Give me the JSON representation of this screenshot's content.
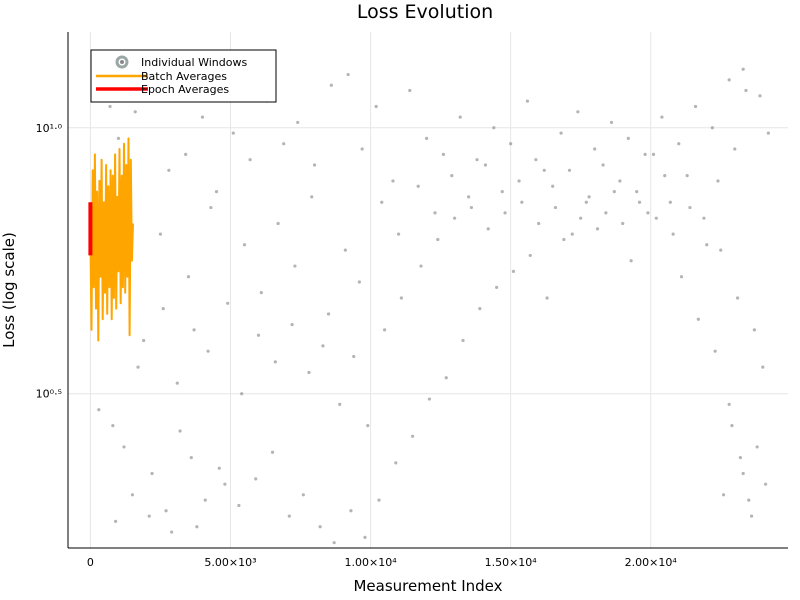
{
  "chart_data": {
    "type": "scatter",
    "title": "Loss Evolution",
    "xlabel": "Measurement Index",
    "ylabel": "Loss (log scale)",
    "xlim": [
      -800,
      24900
    ],
    "ylim": [
      0.21,
      1.18
    ],
    "y_scale": "log10 (axis shows exponent)",
    "grid": true,
    "legend_position": "top-left",
    "x_ticks": [
      {
        "value": 0,
        "label": "0"
      },
      {
        "value": 5000,
        "label": "5.00×10³"
      },
      {
        "value": 10000,
        "label": "1.00×10⁴"
      },
      {
        "value": 15000,
        "label": "1.50×10⁴"
      },
      {
        "value": 20000,
        "label": "2.00×10⁴"
      }
    ],
    "y_ticks": [
      {
        "value": 0.5,
        "label": "10⁰·⁵"
      },
      {
        "value": 1.0,
        "label": "10¹·⁰"
      }
    ],
    "series": [
      {
        "name": "Individual Windows",
        "kind": "scatter",
        "color": "#8c8c8c",
        "points": [
          [
            300,
            0.47
          ],
          [
            800,
            0.44
          ],
          [
            1200,
            0.4
          ],
          [
            1700,
            0.55
          ],
          [
            2200,
            0.35
          ],
          [
            2700,
            0.28
          ],
          [
            3200,
            0.43
          ],
          [
            3600,
            0.38
          ],
          [
            4100,
            0.3
          ],
          [
            4600,
            0.36
          ],
          [
            900,
            0.26
          ],
          [
            1500,
            0.31
          ],
          [
            2100,
            0.27
          ],
          [
            2900,
            0.24
          ],
          [
            3800,
            0.25
          ],
          [
            4800,
            0.33
          ],
          [
            5300,
            0.29
          ],
          [
            5900,
            0.34
          ],
          [
            6500,
            0.39
          ],
          [
            7100,
            0.27
          ],
          [
            7600,
            0.31
          ],
          [
            8200,
            0.25
          ],
          [
            8700,
            0.22
          ],
          [
            9300,
            0.28
          ],
          [
            9800,
            0.23
          ],
          [
            10300,
            0.3
          ],
          [
            10900,
            0.37
          ],
          [
            11500,
            0.42
          ],
          [
            12100,
            0.49
          ],
          [
            12700,
            0.53
          ],
          [
            13300,
            0.6
          ],
          [
            13900,
            0.66
          ],
          [
            14500,
            0.7
          ],
          [
            15100,
            0.73
          ],
          [
            15700,
            0.76
          ],
          [
            16300,
            0.68
          ],
          [
            16900,
            0.79
          ],
          [
            17500,
            0.83
          ],
          [
            18100,
            0.81
          ],
          [
            18700,
            0.88
          ],
          [
            19300,
            0.75
          ],
          [
            19900,
            0.84
          ],
          [
            20500,
            0.91
          ],
          [
            21100,
            0.72
          ],
          [
            21700,
            0.64
          ],
          [
            22300,
            0.58
          ],
          [
            22800,
            0.48
          ],
          [
            23300,
            0.35
          ],
          [
            23800,
            0.4
          ],
          [
            23500,
            0.3
          ],
          [
            1000,
            0.98
          ],
          [
            1600,
            1.03
          ],
          [
            2300,
            1.06
          ],
          [
            2800,
            0.92
          ],
          [
            3400,
            0.95
          ],
          [
            4000,
            1.02
          ],
          [
            4500,
            0.88
          ],
          [
            5100,
            0.99
          ],
          [
            5700,
            0.94
          ],
          [
            6300,
            1.05
          ],
          [
            6900,
            0.97
          ],
          [
            7400,
            1.01
          ],
          [
            8000,
            0.93
          ],
          [
            8600,
            1.08
          ],
          [
            9200,
            1.1
          ],
          [
            9700,
            0.96
          ],
          [
            10200,
            1.04
          ],
          [
            10800,
            0.9
          ],
          [
            11400,
            1.07
          ],
          [
            12000,
            0.98
          ],
          [
            12600,
            0.95
          ],
          [
            13200,
            1.02
          ],
          [
            13800,
            0.94
          ],
          [
            14400,
            1.0
          ],
          [
            15000,
            0.97
          ],
          [
            15600,
            1.05
          ],
          [
            16200,
            0.92
          ],
          [
            16800,
            0.99
          ],
          [
            17400,
            1.03
          ],
          [
            18000,
            0.96
          ],
          [
            18600,
            1.01
          ],
          [
            19200,
            0.98
          ],
          [
            19800,
            0.95
          ],
          [
            20400,
            1.02
          ],
          [
            21000,
            0.97
          ],
          [
            21600,
            1.04
          ],
          [
            22200,
            1.0
          ],
          [
            22800,
            1.09
          ],
          [
            23300,
            1.11
          ],
          [
            23900,
            1.06
          ],
          [
            2500,
            0.8
          ],
          [
            3500,
            0.72
          ],
          [
            4300,
            0.85
          ],
          [
            5500,
            0.78
          ],
          [
            6100,
            0.69
          ],
          [
            6700,
            0.82
          ],
          [
            7300,
            0.74
          ],
          [
            7900,
            0.87
          ],
          [
            8500,
            0.65
          ],
          [
            9100,
            0.77
          ],
          [
            9600,
            0.71
          ],
          [
            10400,
            0.86
          ],
          [
            11000,
            0.8
          ],
          [
            11700,
            0.89
          ],
          [
            12300,
            0.84
          ],
          [
            12900,
            0.91
          ],
          [
            13500,
            0.87
          ],
          [
            14100,
            0.93
          ],
          [
            14700,
            0.88
          ],
          [
            15300,
            0.9
          ],
          [
            15900,
            0.94
          ],
          [
            16500,
            0.89
          ],
          [
            17100,
            0.92
          ],
          [
            17700,
            0.86
          ],
          [
            18300,
            0.93
          ],
          [
            18900,
            0.9
          ],
          [
            19500,
            0.88
          ],
          [
            20100,
            0.95
          ],
          [
            20700,
            0.86
          ],
          [
            21300,
            0.91
          ],
          [
            21900,
            0.83
          ],
          [
            22500,
            0.77
          ],
          [
            23100,
            0.68
          ],
          [
            23700,
            0.62
          ],
          [
            24000,
            0.55
          ],
          [
            22900,
            0.44
          ],
          [
            23200,
            0.38
          ],
          [
            23600,
            0.27
          ],
          [
            22600,
            0.31
          ],
          [
            24100,
            0.33
          ],
          [
            1900,
            0.6
          ],
          [
            2600,
            0.66
          ],
          [
            3100,
            0.52
          ],
          [
            3700,
            0.62
          ],
          [
            4200,
            0.58
          ],
          [
            4900,
            0.67
          ],
          [
            5400,
            0.5
          ],
          [
            6000,
            0.61
          ],
          [
            6600,
            0.56
          ],
          [
            7200,
            0.63
          ],
          [
            7800,
            0.54
          ],
          [
            8300,
            0.59
          ],
          [
            8900,
            0.48
          ],
          [
            9400,
            0.57
          ],
          [
            9900,
            0.44
          ],
          [
            10500,
            0.62
          ],
          [
            11100,
            0.68
          ],
          [
            11800,
            0.74
          ],
          [
            12400,
            0.79
          ],
          [
            13000,
            0.83
          ],
          [
            13600,
            0.85
          ],
          [
            14200,
            0.81
          ],
          [
            14800,
            0.84
          ],
          [
            15400,
            0.86
          ],
          [
            16000,
            0.82
          ],
          [
            16600,
            0.85
          ],
          [
            17200,
            0.8
          ],
          [
            17800,
            0.87
          ],
          [
            18400,
            0.84
          ],
          [
            19000,
            0.82
          ],
          [
            19600,
            0.86
          ],
          [
            20200,
            0.83
          ],
          [
            20800,
            0.8
          ],
          [
            21400,
            0.85
          ],
          [
            22000,
            0.78
          ],
          [
            22400,
            0.9
          ],
          [
            23000,
            0.96
          ],
          [
            23400,
            1.07
          ],
          [
            24200,
            0.99
          ],
          [
            700,
            1.04
          ]
        ]
      },
      {
        "name": "Batch Averages",
        "kind": "line",
        "color": "#ffa500",
        "points": [
          [
            0,
            0.8
          ],
          [
            40,
            0.62
          ],
          [
            80,
            0.92
          ],
          [
            120,
            0.7
          ],
          [
            160,
            0.95
          ],
          [
            200,
            0.66
          ],
          [
            240,
            0.88
          ],
          [
            280,
            0.6
          ],
          [
            320,
            0.9
          ],
          [
            360,
            0.72
          ],
          [
            400,
            0.94
          ],
          [
            440,
            0.64
          ],
          [
            480,
            0.86
          ],
          [
            520,
            0.69
          ],
          [
            560,
            0.93
          ],
          [
            600,
            0.65
          ],
          [
            640,
            0.89
          ],
          [
            680,
            0.7
          ],
          [
            720,
            0.92
          ],
          [
            760,
            0.64
          ],
          [
            800,
            0.91
          ],
          [
            840,
            0.68
          ],
          [
            880,
            0.95
          ],
          [
            920,
            0.66
          ],
          [
            960,
            0.87
          ],
          [
            1000,
            0.73
          ],
          [
            1040,
            0.96
          ],
          [
            1080,
            0.67
          ],
          [
            1120,
            0.91
          ],
          [
            1160,
            0.7
          ],
          [
            1200,
            0.97
          ],
          [
            1240,
            0.69
          ],
          [
            1280,
            0.93
          ],
          [
            1320,
            0.72
          ],
          [
            1360,
            0.98
          ],
          [
            1400,
            0.61
          ],
          [
            1440,
            0.94
          ],
          [
            1480,
            0.75
          ],
          [
            1520,
            0.82
          ]
        ]
      },
      {
        "name": "Epoch Averages",
        "kind": "line",
        "color": "#ff0000",
        "points": [
          [
            0,
            0.76
          ],
          [
            0,
            0.86
          ]
        ]
      }
    ]
  }
}
